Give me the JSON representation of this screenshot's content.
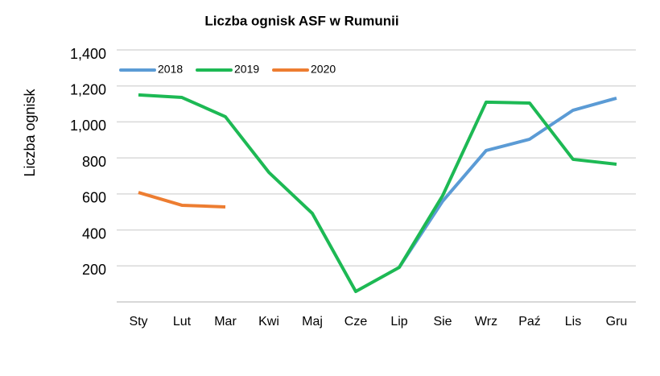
{
  "chart_data": {
    "type": "line",
    "title": "Liczba ognisk ASF w Rumunii",
    "y_label": "Liczba ognisk",
    "categories": [
      "Sty",
      "Lut",
      "Mar",
      "Kwi",
      "Maj",
      "Cze",
      "Lip",
      "Sie",
      "Wrz",
      "Paź",
      "Lis",
      "Gru"
    ],
    "series": [
      {
        "name": "2018",
        "color": "#5b9bd5",
        "values": [
          null,
          null,
          null,
          null,
          null,
          null,
          192,
          560,
          841,
          904,
          1065,
          1132
        ]
      },
      {
        "name": "2019",
        "color": "#1db954",
        "values": [
          1150,
          1136,
          1029,
          720,
          492,
          58,
          192,
          591,
          1110,
          1105,
          792,
          765
        ]
      },
      {
        "name": "2020",
        "color": "#ed7d31",
        "values": [
          608,
          537,
          528,
          null,
          null,
          null,
          null,
          null,
          null,
          null,
          null,
          null
        ]
      }
    ],
    "ylim": [
      0,
      1400
    ],
    "yticks": [
      200,
      400,
      600,
      800,
      {
        "value": 1000,
        "label": "1,000"
      },
      {
        "value": 1200,
        "label": "1,200"
      },
      {
        "value": 1400,
        "label": "1,400"
      }
    ],
    "grid": true,
    "legend": "top-left"
  }
}
